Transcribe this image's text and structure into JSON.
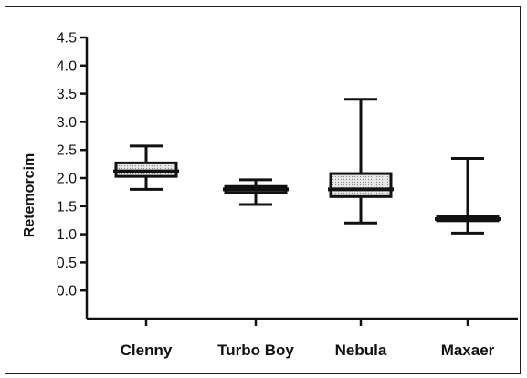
{
  "chart_data": {
    "type": "boxplot",
    "title": "",
    "xlabel": "",
    "ylabel": "Retemorcim",
    "ylim": [
      -0.5,
      4.5
    ],
    "yticks": [
      "0.0",
      "0.5",
      "1.0",
      "1.5",
      "2.0",
      "2.5",
      "3.0",
      "3.5",
      "4.0",
      "4.5"
    ],
    "yticks_values": [
      0.0,
      0.5,
      1.0,
      1.5,
      2.0,
      2.5,
      3.0,
      3.5,
      4.0,
      4.5
    ],
    "grid": false,
    "categories": [
      "Clenny",
      "Turbo Boy",
      "Nebula",
      "Maxaer"
    ],
    "boxes": [
      {
        "category": "Clenny",
        "min": 1.8,
        "q1": 2.03,
        "median": 2.12,
        "q3": 2.27,
        "max": 2.57
      },
      {
        "category": "Turbo Boy",
        "min": 1.53,
        "q1": 1.74,
        "median": 1.8,
        "q3": 1.85,
        "max": 1.97
      },
      {
        "category": "Nebula",
        "min": 1.2,
        "q1": 1.67,
        "median": 1.8,
        "q3": 2.08,
        "max": 3.4
      },
      {
        "category": "Maxaer",
        "min": 1.02,
        "q1": 1.24,
        "median": 1.27,
        "q3": 1.31,
        "max": 2.35
      }
    ],
    "colors": {
      "stroke": "#111111",
      "box_fill": "#e6e6e6",
      "box_hatch": "#9a9a9a"
    }
  }
}
